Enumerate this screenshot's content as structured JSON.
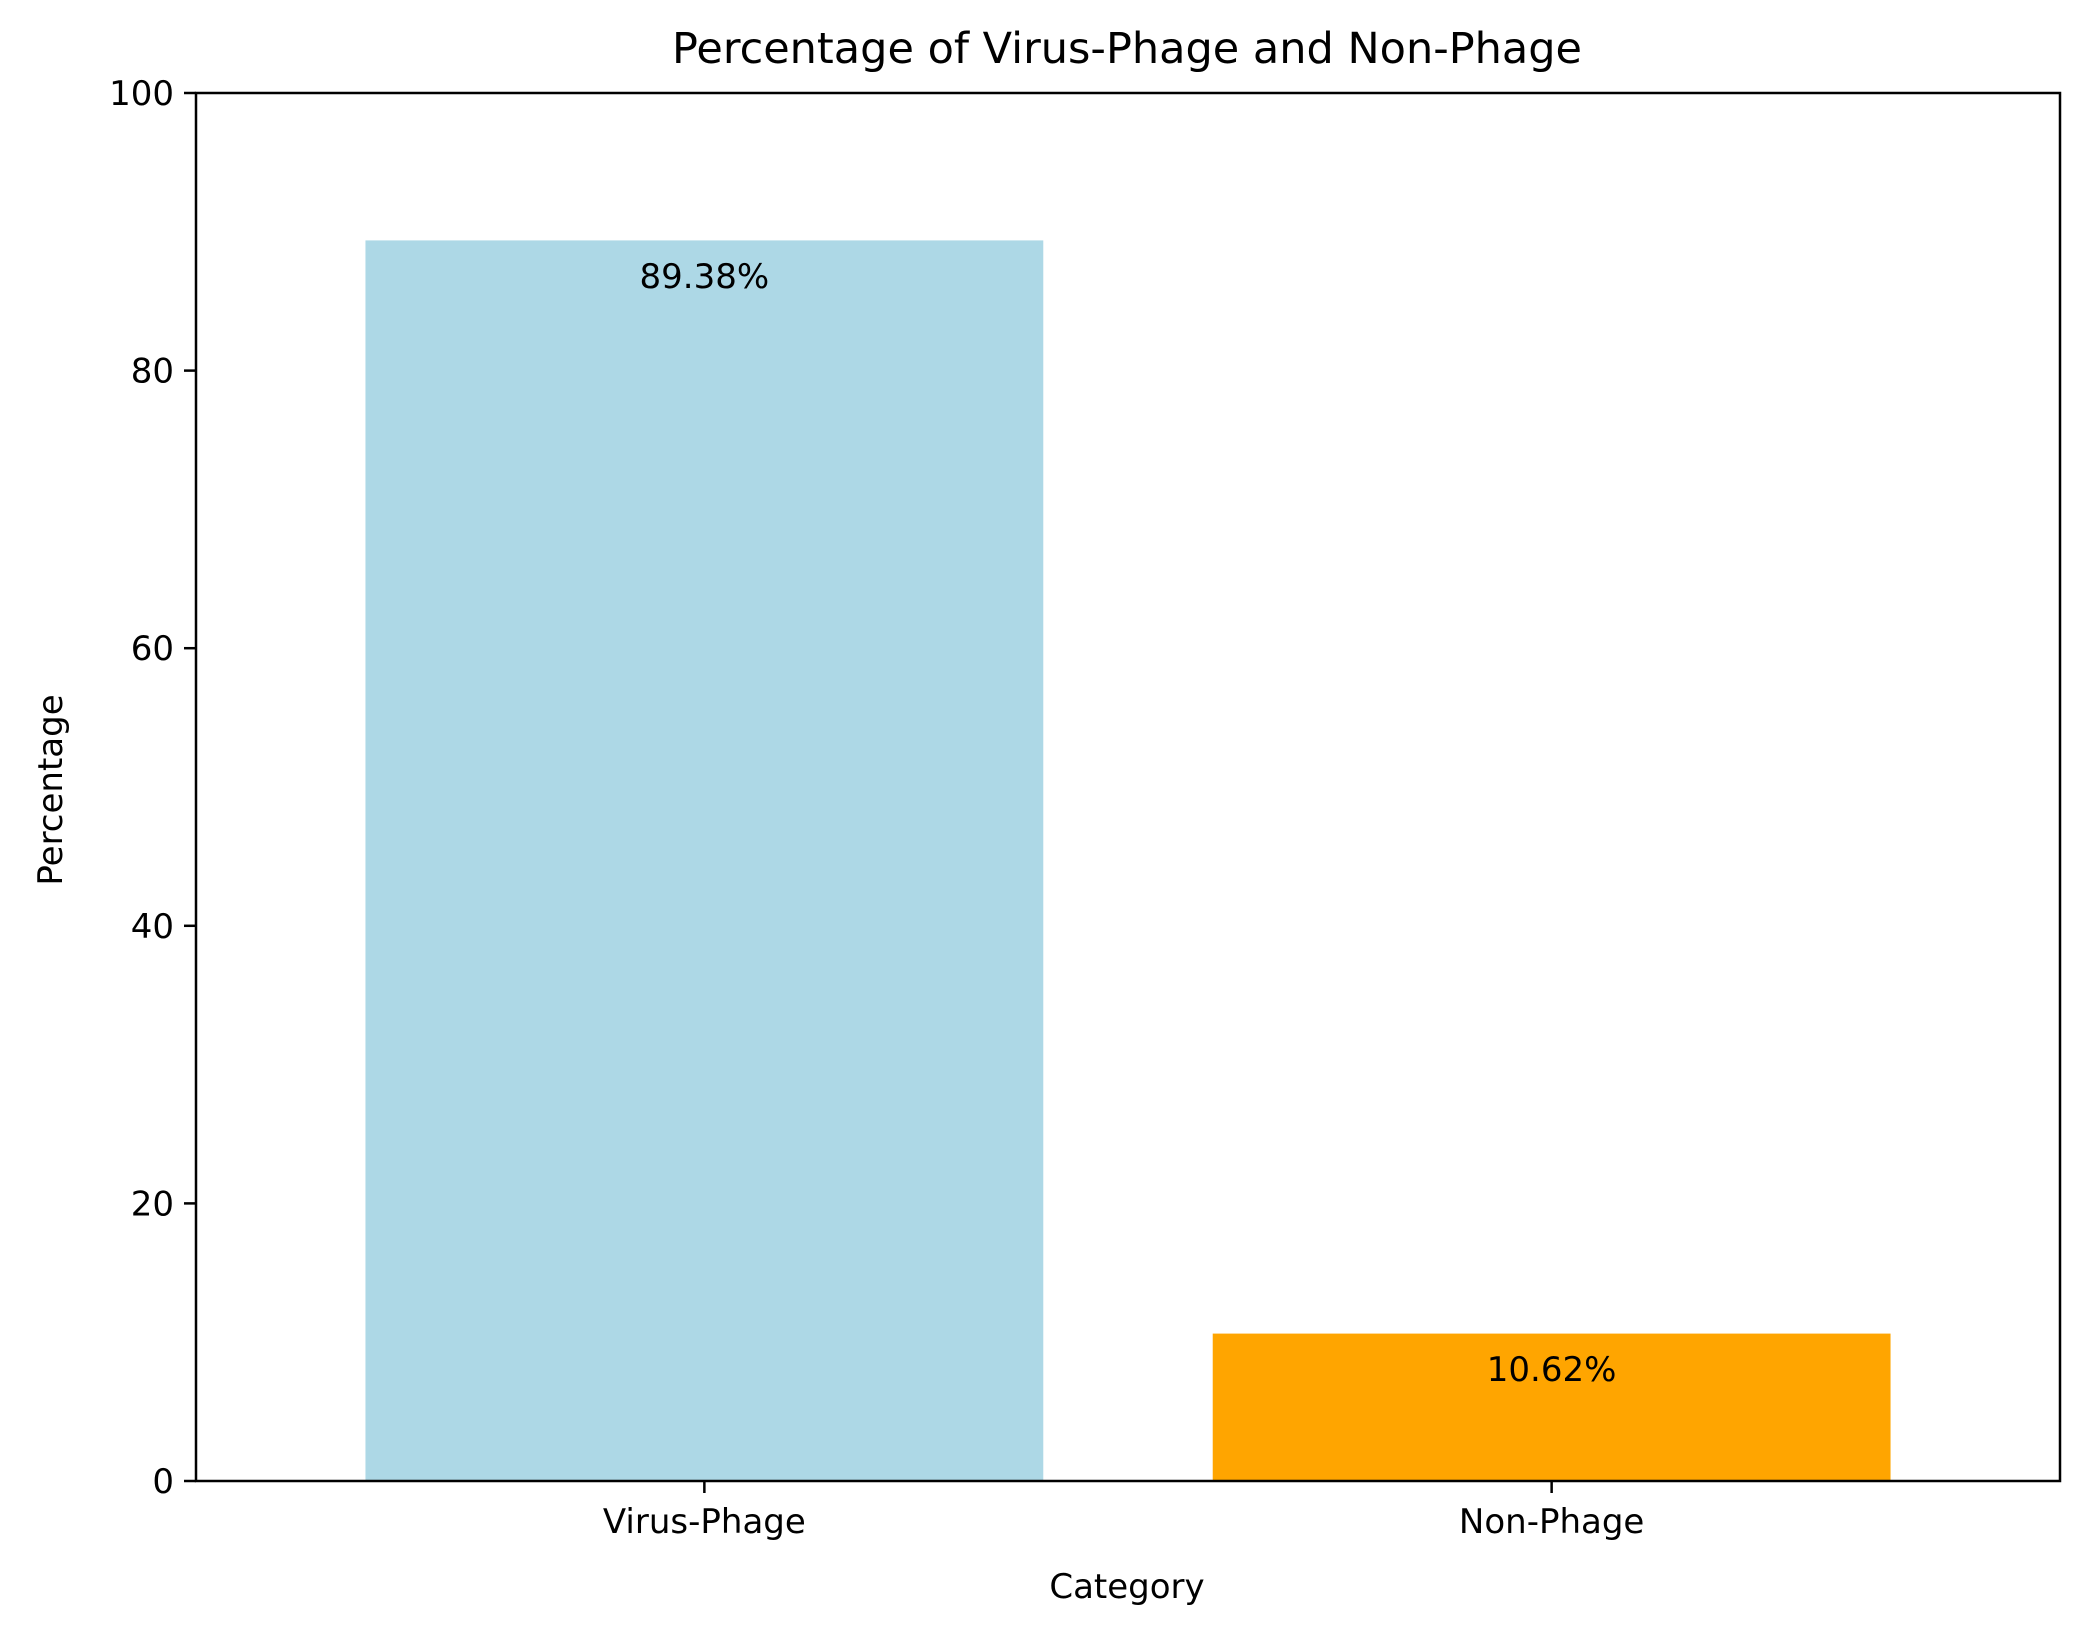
{
  "chart_data": {
    "type": "bar",
    "title": "Percentage of Virus-Phage and Non-Phage",
    "xlabel": "Category",
    "ylabel": "Percentage",
    "categories": [
      "Virus-Phage",
      "Non-Phage"
    ],
    "values": [
      89.38,
      10.62
    ],
    "value_labels": [
      "89.38%",
      "10.62%"
    ],
    "colors": [
      "#add8e6",
      "#ffa500"
    ],
    "ylim": [
      0,
      100
    ],
    "yticks": [
      0,
      20,
      40,
      60,
      80,
      100
    ],
    "ytick_labels": [
      "0",
      "20",
      "40",
      "60",
      "80",
      "100"
    ],
    "grid": false,
    "legend": "none"
  }
}
